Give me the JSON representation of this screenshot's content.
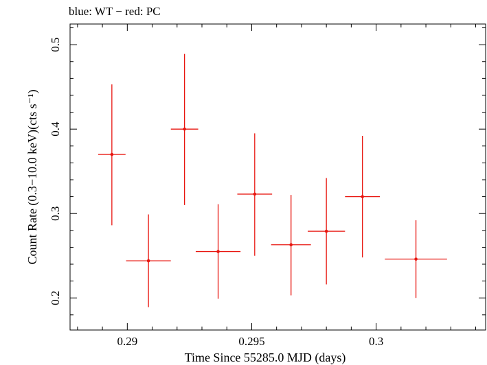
{
  "chart_data": {
    "type": "scatter",
    "title": "blue: WT − red: PC",
    "xlabel": "Time Since 55285.0 MJD (days)",
    "ylabel": "Count Rate (0.3−10.0 keV)(cts s⁻¹)",
    "xlim": [
      0.2877,
      0.3044
    ],
    "ylim": [
      0.162,
      0.5245
    ],
    "x_ticks": [
      {
        "value": 0.29,
        "label": "0.29"
      },
      {
        "value": 0.295,
        "label": "0.295"
      },
      {
        "value": 0.3,
        "label": "0.3"
      }
    ],
    "y_ticks": [
      {
        "value": 0.2,
        "label": "0.2"
      },
      {
        "value": 0.3,
        "label": "0.3"
      },
      {
        "value": 0.4,
        "label": "0.4"
      },
      {
        "value": 0.5,
        "label": "0.5"
      }
    ],
    "series": [
      {
        "color": "#e8150f",
        "points": [
          {
            "x": 0.28938,
            "y": 0.37,
            "xerr": 0.00055,
            "ylo": 0.286,
            "yhi": 0.453
          },
          {
            "x": 0.29085,
            "y": 0.244,
            "xerr": 0.0009,
            "ylo": 0.189,
            "yhi": 0.299
          },
          {
            "x": 0.2923,
            "y": 0.4,
            "xerr": 0.00055,
            "ylo": 0.31,
            "yhi": 0.489
          },
          {
            "x": 0.29365,
            "y": 0.255,
            "xerr": 0.0009,
            "ylo": 0.199,
            "yhi": 0.311
          },
          {
            "x": 0.29512,
            "y": 0.323,
            "xerr": 0.0007,
            "ylo": 0.25,
            "yhi": 0.395
          },
          {
            "x": 0.29658,
            "y": 0.263,
            "xerr": 0.0008,
            "ylo": 0.203,
            "yhi": 0.322
          },
          {
            "x": 0.298,
            "y": 0.279,
            "xerr": 0.00075,
            "ylo": 0.216,
            "yhi": 0.342
          },
          {
            "x": 0.29945,
            "y": 0.32,
            "xerr": 0.0007,
            "ylo": 0.248,
            "yhi": 0.392
          },
          {
            "x": 0.3016,
            "y": 0.246,
            "xerr": 0.00125,
            "ylo": 0.2,
            "yhi": 0.292
          }
        ]
      }
    ]
  }
}
